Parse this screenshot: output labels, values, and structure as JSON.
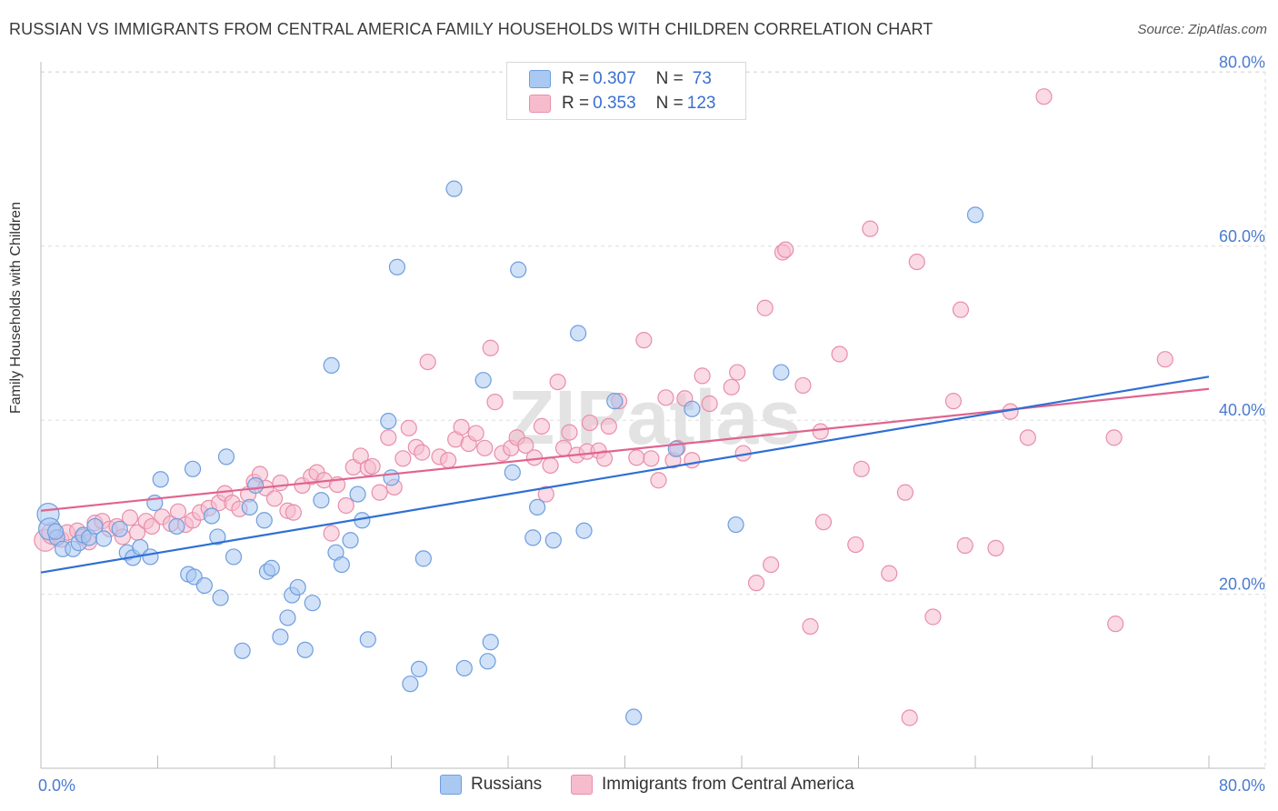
{
  "title": "RUSSIAN VS IMMIGRANTS FROM CENTRAL AMERICA FAMILY HOUSEHOLDS WITH CHILDREN CORRELATION CHART",
  "source": "Source: ZipAtlas.com",
  "watermark": "ZIPatlas",
  "colors": {
    "russians_fill": "#a9c8f2",
    "russians_stroke": "#6e9ede",
    "russians_line": "#2f6fd4",
    "immigrants_fill": "#f6bccd",
    "immigrants_stroke": "#e98eaa",
    "immigrants_line": "#e0648f",
    "axis_label": "#4a7bd0",
    "grid": "#dddddd"
  },
  "legend": {
    "rows": [
      {
        "r_label": "R = ",
        "r_value": "0.307",
        "n_label": "N = ",
        "n_value": "73"
      },
      {
        "r_label": "R = ",
        "r_value": "0.353",
        "n_label": "N = ",
        "n_value": "123"
      }
    ]
  },
  "bottom_legend": [
    "Russians",
    "Immigrants from Central America"
  ],
  "chart_data": {
    "type": "scatter",
    "title": "RUSSIAN VS IMMIGRANTS FROM CENTRAL AMERICA FAMILY HOUSEHOLDS WITH CHILDREN CORRELATION CHART",
    "xlabel": "",
    "ylabel": "Family Households with Children",
    "xlim": [
      0,
      80
    ],
    "ylim": [
      0,
      82
    ],
    "x_tick_labels": [
      "0.0%",
      "80.0%"
    ],
    "y_ticks": [
      20,
      40,
      60,
      80
    ],
    "y_tick_labels": [
      "20.0%",
      "40.0%",
      "60.0%",
      "80.0%"
    ],
    "grid": true,
    "series": [
      {
        "name": "Russians",
        "R": 0.307,
        "N": 73,
        "trend": {
          "x": [
            0,
            80
          ],
          "y": [
            22.5,
            45.0
          ]
        },
        "points": [
          [
            0.5,
            29.2
          ],
          [
            0.6,
            27.5
          ],
          [
            1.1,
            26.5
          ],
          [
            1.5,
            25.2
          ],
          [
            2.2,
            25.2
          ],
          [
            2.6,
            25.9
          ],
          [
            2.9,
            26.8
          ],
          [
            3.3,
            26.5
          ],
          [
            3.7,
            27.8
          ],
          [
            4.3,
            26.4
          ],
          [
            5.4,
            27.5
          ],
          [
            5.9,
            24.8
          ],
          [
            6.3,
            24.2
          ],
          [
            6.8,
            25.4
          ],
          [
            7.8,
            30.5
          ],
          [
            8.2,
            33.2
          ],
          [
            7.5,
            24.3
          ],
          [
            9.3,
            27.8
          ],
          [
            10.1,
            22.3
          ],
          [
            10.5,
            22.0
          ],
          [
            10.4,
            34.4
          ],
          [
            11.2,
            21.0
          ],
          [
            11.7,
            29.0
          ],
          [
            12.1,
            26.6
          ],
          [
            12.3,
            19.6
          ],
          [
            12.7,
            35.8
          ],
          [
            13.2,
            24.3
          ],
          [
            13.8,
            13.5
          ],
          [
            14.7,
            32.5
          ],
          [
            14.3,
            30.0
          ],
          [
            15.3,
            28.5
          ],
          [
            15.5,
            22.6
          ],
          [
            15.8,
            23.0
          ],
          [
            16.4,
            15.1
          ],
          [
            16.9,
            17.3
          ],
          [
            17.2,
            19.9
          ],
          [
            17.6,
            20.8
          ],
          [
            18.1,
            13.6
          ],
          [
            18.6,
            19.0
          ],
          [
            19.2,
            30.8
          ],
          [
            19.9,
            46.3
          ],
          [
            20.2,
            24.8
          ],
          [
            20.6,
            23.4
          ],
          [
            21.2,
            26.2
          ],
          [
            21.7,
            31.5
          ],
          [
            22.0,
            28.5
          ],
          [
            22.4,
            14.8
          ],
          [
            23.8,
            39.9
          ],
          [
            24.0,
            33.4
          ],
          [
            24.4,
            57.6
          ],
          [
            25.3,
            9.7
          ],
          [
            25.9,
            11.4
          ],
          [
            26.2,
            24.1
          ],
          [
            28.3,
            66.6
          ],
          [
            29.0,
            11.5
          ],
          [
            30.3,
            44.6
          ],
          [
            30.6,
            12.3
          ],
          [
            30.8,
            14.5
          ],
          [
            32.3,
            34.0
          ],
          [
            32.7,
            57.3
          ],
          [
            33.7,
            26.5
          ],
          [
            34.0,
            30.0
          ],
          [
            35.1,
            26.2
          ],
          [
            36.8,
            50.0
          ],
          [
            37.2,
            27.3
          ],
          [
            39.3,
            42.2
          ],
          [
            40.6,
            5.9
          ],
          [
            43.5,
            36.7
          ],
          [
            44.6,
            41.3
          ],
          [
            47.6,
            28.0
          ],
          [
            50.7,
            45.5
          ],
          [
            64.0,
            63.6
          ],
          [
            1.0,
            27.2
          ]
        ]
      },
      {
        "name": "Immigrants from Central America",
        "R": 0.353,
        "N": 123,
        "trend": {
          "x": [
            0,
            80
          ],
          "y": [
            29.6,
            43.6
          ]
        },
        "points": [
          [
            0.3,
            26.2
          ],
          [
            0.8,
            27.0
          ],
          [
            1.4,
            26.3
          ],
          [
            1.8,
            27.1
          ],
          [
            2.5,
            27.3
          ],
          [
            2.9,
            26.6
          ],
          [
            3.3,
            26.0
          ],
          [
            3.7,
            28.2
          ],
          [
            4.2,
            28.4
          ],
          [
            4.7,
            27.5
          ],
          [
            5.2,
            27.8
          ],
          [
            5.6,
            26.6
          ],
          [
            6.1,
            28.8
          ],
          [
            6.6,
            27.1
          ],
          [
            7.2,
            28.4
          ],
          [
            7.6,
            27.8
          ],
          [
            8.3,
            28.9
          ],
          [
            8.9,
            28.1
          ],
          [
            9.4,
            29.5
          ],
          [
            9.9,
            28.0
          ],
          [
            10.4,
            28.5
          ],
          [
            10.9,
            29.4
          ],
          [
            11.5,
            29.9
          ],
          [
            12.2,
            30.5
          ],
          [
            12.6,
            31.6
          ],
          [
            13.1,
            30.5
          ],
          [
            13.6,
            29.8
          ],
          [
            14.2,
            31.5
          ],
          [
            14.6,
            32.9
          ],
          [
            15.0,
            33.8
          ],
          [
            15.4,
            32.2
          ],
          [
            16.0,
            31.0
          ],
          [
            16.4,
            32.8
          ],
          [
            16.9,
            29.6
          ],
          [
            17.3,
            29.4
          ],
          [
            17.9,
            32.5
          ],
          [
            18.5,
            33.5
          ],
          [
            18.9,
            34.0
          ],
          [
            19.4,
            33.1
          ],
          [
            19.9,
            27.0
          ],
          [
            20.3,
            32.6
          ],
          [
            20.9,
            30.2
          ],
          [
            21.4,
            34.6
          ],
          [
            21.9,
            35.9
          ],
          [
            22.4,
            34.5
          ],
          [
            22.7,
            34.7
          ],
          [
            23.2,
            31.7
          ],
          [
            23.8,
            38.0
          ],
          [
            24.2,
            32.3
          ],
          [
            24.8,
            35.6
          ],
          [
            25.2,
            39.1
          ],
          [
            25.7,
            36.9
          ],
          [
            26.1,
            36.3
          ],
          [
            26.5,
            46.7
          ],
          [
            27.3,
            35.8
          ],
          [
            27.9,
            35.4
          ],
          [
            28.4,
            37.8
          ],
          [
            28.8,
            39.2
          ],
          [
            29.3,
            37.3
          ],
          [
            29.8,
            38.5
          ],
          [
            30.4,
            36.8
          ],
          [
            30.8,
            48.3
          ],
          [
            31.1,
            42.1
          ],
          [
            31.6,
            36.2
          ],
          [
            32.2,
            36.8
          ],
          [
            32.6,
            38.0
          ],
          [
            33.2,
            37.1
          ],
          [
            33.8,
            35.7
          ],
          [
            34.3,
            39.3
          ],
          [
            34.6,
            31.5
          ],
          [
            34.9,
            34.8
          ],
          [
            35.4,
            44.4
          ],
          [
            35.8,
            36.8
          ],
          [
            36.2,
            38.6
          ],
          [
            36.7,
            36.0
          ],
          [
            37.4,
            36.4
          ],
          [
            37.6,
            39.7
          ],
          [
            38.2,
            36.5
          ],
          [
            38.6,
            35.6
          ],
          [
            38.9,
            39.3
          ],
          [
            39.6,
            42.2
          ],
          [
            40.8,
            35.7
          ],
          [
            41.3,
            49.2
          ],
          [
            41.8,
            35.6
          ],
          [
            42.3,
            33.1
          ],
          [
            42.8,
            42.6
          ],
          [
            43.3,
            35.4
          ],
          [
            43.6,
            36.8
          ],
          [
            44.1,
            42.5
          ],
          [
            44.6,
            35.4
          ],
          [
            45.3,
            45.1
          ],
          [
            45.8,
            41.9
          ],
          [
            47.3,
            43.8
          ],
          [
            47.7,
            45.5
          ],
          [
            48.1,
            36.2
          ],
          [
            49.0,
            21.3
          ],
          [
            49.6,
            52.9
          ],
          [
            50.0,
            23.4
          ],
          [
            50.8,
            59.3
          ],
          [
            51.0,
            59.6
          ],
          [
            52.2,
            44.0
          ],
          [
            52.7,
            16.3
          ],
          [
            53.4,
            38.7
          ],
          [
            53.6,
            28.3
          ],
          [
            54.7,
            47.6
          ],
          [
            55.8,
            25.7
          ],
          [
            56.2,
            34.4
          ],
          [
            56.8,
            62.0
          ],
          [
            58.1,
            22.4
          ],
          [
            59.2,
            31.7
          ],
          [
            59.5,
            5.8
          ],
          [
            60.0,
            58.2
          ],
          [
            61.1,
            17.4
          ],
          [
            62.5,
            42.2
          ],
          [
            63.0,
            52.7
          ],
          [
            63.3,
            25.6
          ],
          [
            65.4,
            25.3
          ],
          [
            66.4,
            41.0
          ],
          [
            67.6,
            38.0
          ],
          [
            68.7,
            77.2
          ],
          [
            73.5,
            38.0
          ],
          [
            73.6,
            16.6
          ],
          [
            77.0,
            47.0
          ]
        ]
      }
    ]
  }
}
